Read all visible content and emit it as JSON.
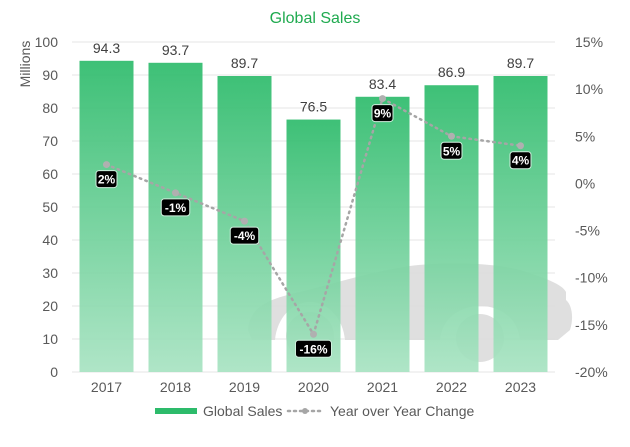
{
  "chart_data": {
    "type": "bar",
    "title": "Global Sales",
    "xlabel": "",
    "ylabel": "Millions",
    "categories": [
      "2017",
      "2018",
      "2019",
      "2020",
      "2021",
      "2022",
      "2023"
    ],
    "ylim": [
      0,
      100
    ],
    "y_ticks": [
      "0",
      "10",
      "20",
      "30",
      "40",
      "50",
      "60",
      "70",
      "80",
      "90",
      "100"
    ],
    "y2lim": [
      -20,
      15
    ],
    "y2_ticks": [
      "-20%",
      "-15%",
      "-10%",
      "-5%",
      "0%",
      "5%",
      "10%",
      "15%"
    ],
    "grid": true,
    "legend_position": "bottom",
    "series": [
      {
        "name": "Global Sales",
        "type": "bar",
        "axis": "left",
        "color": "#2dbb6b",
        "values": [
          94.3,
          93.7,
          89.7,
          76.5,
          83.4,
          86.9,
          89.7
        ],
        "labels": [
          "94.3",
          "93.7",
          "89.7",
          "76.5",
          "83.4",
          "86.9",
          "89.7"
        ]
      },
      {
        "name": "Year over Year Change",
        "type": "line",
        "axis": "right",
        "color": "#a6a6a6",
        "style": "dotted",
        "values": [
          2,
          -1,
          -4,
          -16,
          9,
          5,
          4
        ],
        "labels": [
          "2%",
          "-1%",
          "-4%",
          "-16%",
          "9%",
          "5%",
          "4%"
        ]
      }
    ],
    "background_decoration": "car-silhouette"
  }
}
